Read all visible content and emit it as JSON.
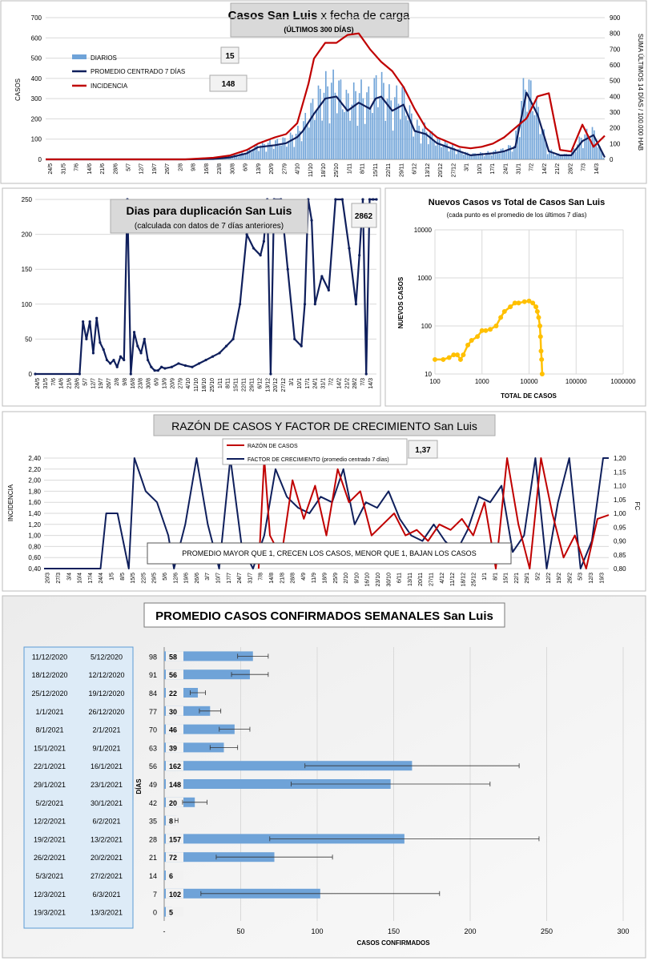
{
  "chart_data": [
    {
      "type": "bar+line",
      "title": "Casos San Luis",
      "title_suffix": "x fecha de carga",
      "subtitle": "(ÚLTIMOS 300 DÍAS)",
      "ylabel": "CASOS",
      "ylabel_right": "SUMA  ÚLTIMOS 14 DÍAS / 100.000 HAB",
      "ylim": [
        0,
        700
      ],
      "ylim_right": [
        0,
        900
      ],
      "y_ticks": [
        "0",
        "100",
        "200",
        "300",
        "400",
        "500",
        "600",
        "700"
      ],
      "y_ticks_right": [
        "0",
        "100",
        "200",
        "300",
        "400",
        "500",
        "600",
        "700",
        "800",
        "900"
      ],
      "x_ticks": [
        "24/5",
        "31/5",
        "7/6",
        "14/6",
        "21/6",
        "28/6",
        "5/7",
        "12/7",
        "19/7",
        "26/7",
        "2/8",
        "9/8",
        "16/8",
        "23/8",
        "30/8",
        "6/9",
        "13/9",
        "20/9",
        "27/9",
        "4/10",
        "11/10",
        "18/10",
        "25/10",
        "1/11",
        "8/11",
        "15/11",
        "22/11",
        "29/11",
        "6/12",
        "13/12",
        "20/12",
        "27/12",
        "3/1",
        "10/1",
        "17/1",
        "24/1",
        "31/1",
        "7/2",
        "14/2",
        "21/2",
        "28/2",
        "7/3",
        "14/3"
      ],
      "legend": [
        "DIARIOS",
        "PROMEDIO CENTRADO 7 DÍAS",
        "INCIDENCIA"
      ],
      "annotations": [
        "15",
        "148"
      ],
      "series": [
        {
          "name": "PROMEDIO CENTRADO 7 DÍAS",
          "x": [
            0,
            12,
            20,
            25,
            30,
            33,
            36,
            38,
            41,
            43,
            45,
            46,
            48,
            50,
            52,
            54,
            56,
            58,
            59,
            60,
            62,
            64,
            66,
            68,
            70,
            72,
            74,
            76,
            78,
            80,
            82,
            84,
            86,
            88,
            90,
            92,
            94,
            96,
            98,
            100
          ],
          "values": [
            0,
            0,
            0,
            0,
            2,
            10,
            30,
            60,
            70,
            80,
            110,
            140,
            225,
            300,
            310,
            240,
            280,
            250,
            300,
            310,
            240,
            270,
            140,
            125,
            80,
            60,
            40,
            20,
            25,
            30,
            40,
            60,
            330,
            220,
            40,
            20,
            20,
            90,
            120,
            10
          ]
        },
        {
          "name": "INCIDENCIA",
          "x": [
            0,
            12,
            20,
            25,
            30,
            33,
            36,
            38,
            41,
            43,
            45,
            47,
            48,
            50,
            52,
            54,
            56,
            58,
            60,
            62,
            64,
            66,
            68,
            70,
            72,
            74,
            76,
            78,
            80,
            82,
            84,
            86,
            88,
            90,
            92,
            94,
            96,
            98,
            100
          ],
          "values": [
            0,
            0,
            0,
            0,
            10,
            25,
            60,
            100,
            140,
            160,
            230,
            480,
            640,
            740,
            740,
            790,
            800,
            700,
            620,
            560,
            460,
            320,
            200,
            140,
            110,
            80,
            70,
            80,
            100,
            140,
            200,
            260,
            400,
            420,
            60,
            50,
            220,
            80,
            150
          ]
        }
      ]
    },
    {
      "type": "line",
      "title": "Dias para duplicación San Luis",
      "subtitle": "(calculada con datos de 7 días anteriores)",
      "ylim": [
        0,
        250
      ],
      "y_ticks": [
        "0",
        "50",
        "100",
        "150",
        "200",
        "250"
      ],
      "x_ticks": [
        "24/5",
        "31/5",
        "7/6",
        "14/6",
        "21/6",
        "28/6",
        "5/7",
        "12/7",
        "19/7",
        "26/7",
        "2/8",
        "9/8",
        "16/8",
        "23/8",
        "30/8",
        "6/9",
        "13/9",
        "20/9",
        "27/9",
        "4/10",
        "11/10",
        "18/10",
        "25/10",
        "1/11",
        "8/11",
        "15/11",
        "22/11",
        "29/11",
        "6/12",
        "13/12",
        "20/12",
        "27/12",
        "3/1",
        "10/1",
        "17/1",
        "24/1",
        "31/1",
        "7/2",
        "14/2",
        "21/2",
        "28/2",
        "7/3",
        "14/3"
      ],
      "annotation": "2862",
      "x": [
        0,
        13,
        14,
        15,
        16,
        17,
        18,
        19,
        20,
        21,
        22,
        23,
        24,
        25,
        26,
        27,
        28,
        29,
        30,
        31,
        32,
        33,
        34,
        35,
        36,
        37,
        38,
        40,
        42,
        44,
        46,
        48,
        50,
        52,
        54,
        56,
        58,
        60,
        62,
        64,
        66,
        67,
        68,
        69,
        70,
        72,
        74,
        76,
        78,
        79,
        80,
        81,
        82,
        84,
        86,
        88,
        90,
        92,
        94,
        95,
        96,
        97,
        98,
        99,
        100
      ],
      "values": [
        0,
        0,
        75,
        50,
        75,
        30,
        80,
        45,
        35,
        20,
        15,
        20,
        10,
        25,
        20,
        250,
        0,
        60,
        40,
        30,
        50,
        20,
        10,
        5,
        5,
        10,
        8,
        10,
        15,
        12,
        10,
        15,
        20,
        25,
        30,
        40,
        50,
        100,
        200,
        180,
        170,
        190,
        250,
        0,
        250,
        250,
        150,
        50,
        40,
        100,
        250,
        220,
        100,
        140,
        120,
        250,
        250,
        180,
        100,
        170,
        250,
        0,
        250,
        250,
        250
      ]
    },
    {
      "type": "scatter",
      "title": "Nuevos Casos vs Total de Casos San Luis",
      "subtitle": "(cada punto es el promedio de los últimos 7 días)",
      "xlabel": "TOTAL DE CASOS",
      "ylabel": "NUEVOS CASOS",
      "x_scale": "log",
      "y_scale": "log",
      "x_ticks": [
        "100",
        "1000",
        "10000",
        "100000",
        "1000000"
      ],
      "y_ticks": [
        "10",
        "100",
        "1000",
        "10000"
      ],
      "x": [
        100,
        150,
        200,
        250,
        300,
        350,
        400,
        500,
        600,
        800,
        1000,
        1200,
        1500,
        2000,
        2500,
        3000,
        4000,
        5000,
        6000,
        8000,
        10000,
        12000,
        14000,
        15000,
        16000,
        17000,
        17500,
        18000,
        18500,
        19000
      ],
      "values": [
        20,
        20,
        22,
        25,
        25,
        20,
        25,
        40,
        50,
        60,
        80,
        80,
        85,
        100,
        150,
        200,
        250,
        300,
        300,
        320,
        330,
        300,
        250,
        200,
        150,
        100,
        60,
        30,
        20,
        10
      ]
    },
    {
      "type": "line",
      "title": "RAZÓN DE CASOS Y FACTOR DE CRECIMIENTO San Luis",
      "ylabel": "INCIDENCIA",
      "ylabel_right": "FC",
      "ylim": [
        0.4,
        2.4
      ],
      "ylim_right": [
        0.8,
        1.2
      ],
      "y_ticks": [
        "0,40",
        "0,60",
        "0,80",
        "1,00",
        "1,20",
        "1,40",
        "1,60",
        "1,80",
        "2,00",
        "2,20",
        "2,40"
      ],
      "y_ticks_right": [
        "0,80",
        "0,85",
        "0,90",
        "0,95",
        "1,00",
        "1,05",
        "1,10",
        "1,15",
        "1,20"
      ],
      "x_ticks": [
        "20/3",
        "27/3",
        "3/4",
        "10/4",
        "17/4",
        "24/4",
        "1/5",
        "8/5",
        "15/5",
        "22/5",
        "29/5",
        "5/6",
        "12/6",
        "19/6",
        "26/6",
        "3/7",
        "10/7",
        "17/7",
        "24/7",
        "31/7",
        "7/8",
        "14/8",
        "21/8",
        "28/8",
        "4/9",
        "11/9",
        "18/9",
        "25/9",
        "2/10",
        "9/10",
        "16/10",
        "23/10",
        "30/10",
        "6/11",
        "13/11",
        "20/11",
        "27/11",
        "4/12",
        "11/12",
        "18/12",
        "25/12",
        "1/1",
        "8/1",
        "15/1",
        "22/1",
        "29/1",
        "5/2",
        "12/2",
        "19/2",
        "26/2",
        "5/3",
        "12/3",
        "19/3"
      ],
      "legend": [
        "RAZÓN DE CASOS",
        "FACTOR DE CRECIMIENTO (promedio centrado 7 días)"
      ],
      "annotation": "1,37",
      "note": "PROMEDIO MAYOR QUE 1, CRECEN LOS CASOS, MENOR QUE 1, BAJAN LOS CASOS",
      "series": [
        {
          "name": "RAZÓN DE CASOS",
          "x": [
            0,
            5,
            38,
            39,
            40,
            42,
            44,
            46,
            48,
            50,
            52,
            54,
            56,
            58,
            60,
            62,
            64,
            66,
            68,
            70,
            72,
            74,
            76,
            78,
            80,
            82,
            84,
            86,
            88,
            90,
            92,
            94,
            96,
            98,
            100
          ],
          "values": [
            null,
            null,
            0.4,
            2.4,
            1.0,
            0.6,
            2.0,
            1.3,
            1.9,
            1.0,
            2.2,
            1.6,
            1.8,
            1.0,
            1.2,
            1.4,
            1.0,
            1.1,
            0.9,
            1.2,
            1.1,
            1.3,
            1.0,
            1.6,
            0.4,
            2.4,
            1.2,
            0.4,
            2.4,
            1.4,
            0.6,
            1.0,
            0.4,
            1.3,
            1.37
          ]
        },
        {
          "name": "FACTOR DE CRECIMIENTO (promedio centrado 7 días)",
          "x": [
            0,
            10,
            11,
            13,
            15,
            16,
            18,
            20,
            22,
            23,
            25,
            27,
            29,
            31,
            33,
            35,
            37,
            39,
            41,
            43,
            45,
            47,
            49,
            51,
            53,
            55,
            57,
            59,
            61,
            63,
            65,
            67,
            69,
            71,
            73,
            75,
            77,
            79,
            81,
            83,
            85,
            87,
            89,
            91,
            93,
            95,
            97,
            99,
            100
          ],
          "values": [
            0.4,
            0.4,
            1.4,
            1.4,
            0.4,
            2.4,
            1.8,
            1.6,
            1.0,
            0.4,
            1.2,
            2.4,
            1.2,
            0.4,
            2.4,
            0.8,
            0.4,
            1.0,
            2.2,
            1.7,
            1.5,
            1.4,
            1.7,
            1.6,
            2.2,
            1.2,
            1.6,
            1.5,
            1.8,
            1.3,
            1.0,
            0.9,
            1.2,
            0.9,
            0.7,
            1.1,
            1.7,
            1.6,
            1.9,
            0.7,
            1.0,
            2.4,
            0.4,
            1.6,
            2.4,
            0.4,
            0.9,
            2.4,
            2.4
          ]
        }
      ]
    },
    {
      "type": "bar",
      "orientation": "horizontal",
      "title": "PROMEDIO CASOS CONFIRMADOS SEMANALES San Luis",
      "xlabel": "CASOS CONFIRMADOS",
      "ylabel": "DÍAS",
      "xlim": [
        0,
        300
      ],
      "x_ticks": [
        "-",
        "50",
        "100",
        "150",
        "200",
        "250",
        "300"
      ],
      "rows": [
        {
          "end": "11/12/2020",
          "start": "5/12/2020",
          "days": "98",
          "value": 58,
          "err": 10
        },
        {
          "end": "18/12/2020",
          "start": "12/12/2020",
          "days": "91",
          "value": 56,
          "err": 12
        },
        {
          "end": "25/12/2020",
          "start": "19/12/2020",
          "days": "84",
          "value": 22,
          "err": 5
        },
        {
          "end": "1/1/2021",
          "start": "26/12/2020",
          "days": "77",
          "value": 30,
          "err": 7
        },
        {
          "end": "8/1/2021",
          "start": "2/1/2021",
          "days": "70",
          "value": 46,
          "err": 10
        },
        {
          "end": "15/1/2021",
          "start": "9/1/2021",
          "days": "63",
          "value": 39,
          "err": 9
        },
        {
          "end": "22/1/2021",
          "start": "16/1/2021",
          "days": "56",
          "value": 162,
          "err": 70
        },
        {
          "end": "29/1/2021",
          "start": "23/1/2021",
          "days": "49",
          "value": 148,
          "err": 65
        },
        {
          "end": "5/2/2021",
          "start": "30/1/2021",
          "days": "42",
          "value": 20,
          "err": 8
        },
        {
          "end": "12/2/2021",
          "start": "6/2/2021",
          "days": "35",
          "value": 8,
          "err": 1
        },
        {
          "end": "19/2/2021",
          "start": "13/2/2021",
          "days": "28",
          "value": 157,
          "err": 88
        },
        {
          "end": "26/2/2021",
          "start": "20/2/2021",
          "days": "21",
          "value": 72,
          "err": 38
        },
        {
          "end": "5/3/2021",
          "start": "27/2/2021",
          "days": "14",
          "value": 6,
          "err": 0
        },
        {
          "end": "12/3/2021",
          "start": "6/3/2021",
          "days": "7",
          "value": 102,
          "err": 78
        },
        {
          "end": "19/3/2021",
          "start": "13/3/2021",
          "days": "0",
          "value": 5,
          "err": 0
        }
      ]
    }
  ],
  "colors": {
    "bar": "#6fa3d8",
    "navy": "#0f1f5c",
    "red": "#c00000",
    "yellow": "#ffc000",
    "grid": "#d9d9d9"
  }
}
